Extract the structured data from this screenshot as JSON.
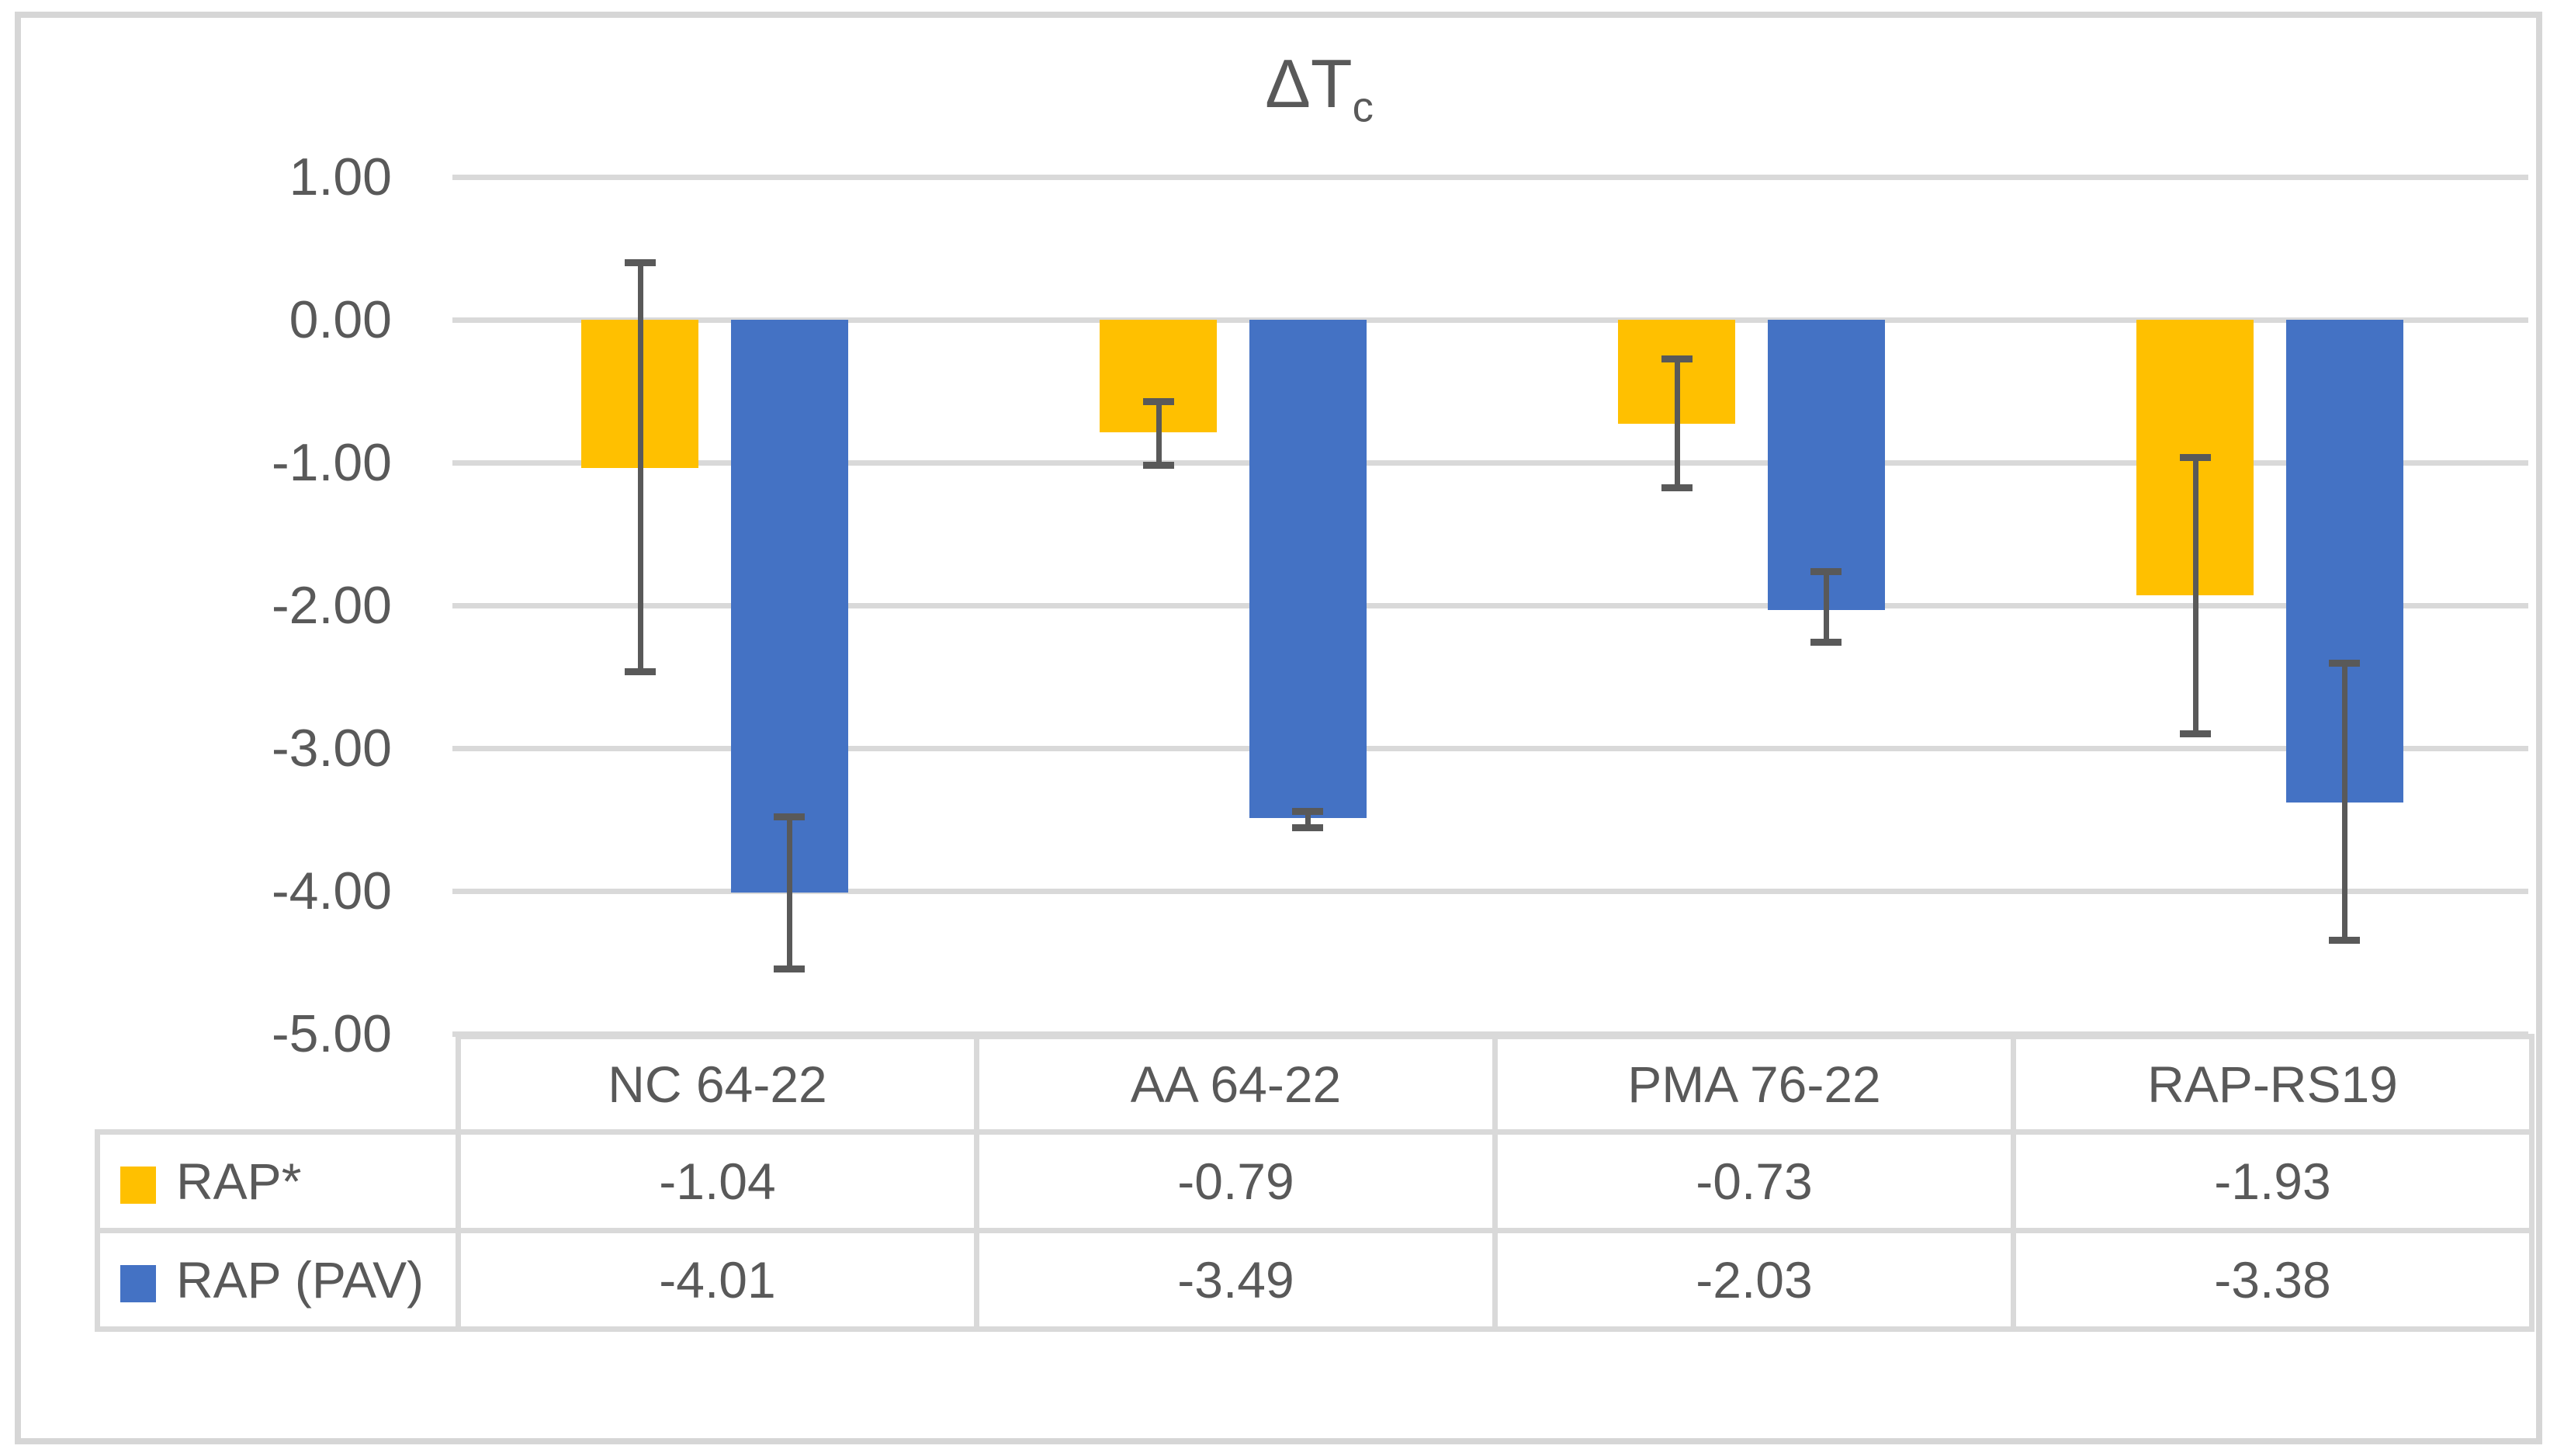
{
  "title": {
    "base": "ΔT",
    "subscript": "c"
  },
  "chart_data": {
    "type": "bar",
    "title": "ΔTc",
    "orientation": "vertical",
    "categories": [
      "NC 64-22",
      "AA 64-22",
      "PMA 76-22",
      "RAP-RS19"
    ],
    "series": [
      {
        "name": "RAP*",
        "color": "#FFC000",
        "values": [
          -1.04,
          -0.79,
          -0.73,
          -1.93
        ],
        "error_whisker_top": [
          0.4,
          -0.57,
          -0.27,
          -0.96
        ],
        "error_whisker_bottom": [
          -2.47,
          -1.02,
          -1.18,
          -2.9
        ]
      },
      {
        "name": "RAP (PAV)",
        "color": "#4472C4",
        "values": [
          -4.01,
          -3.49,
          -2.03,
          -3.38
        ],
        "error_whisker_top": [
          -3.48,
          -3.44,
          -1.76,
          -2.4
        ],
        "error_whisker_bottom": [
          -4.55,
          -3.56,
          -2.26,
          -4.35
        ]
      }
    ],
    "y_axis": {
      "min": -5.0,
      "max": 1.0,
      "step": 1.0,
      "tick_labels": [
        "1.00",
        "0.00",
        "-1.00",
        "-2.00",
        "-3.00",
        "-4.00",
        "-5.00"
      ]
    },
    "grid": true,
    "legend_position": "table-left",
    "data_table_shown": true,
    "colors": {
      "text": "#595959",
      "gridline": "#D9D9D9",
      "table_border": "#D9D9D9",
      "frame_border": "#D6D6D6",
      "error_bar": "#595959"
    }
  }
}
